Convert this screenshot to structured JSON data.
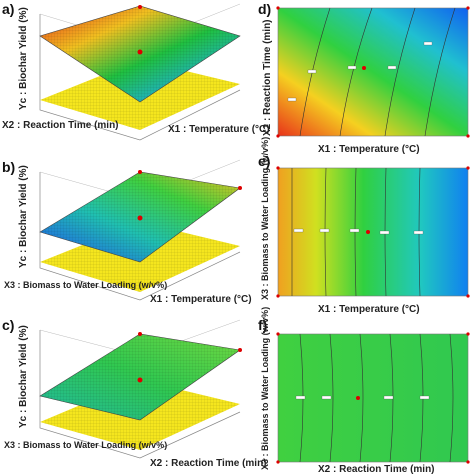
{
  "panel_labels": [
    "a)",
    "b)",
    "c)",
    "d)",
    "e)",
    "f)"
  ],
  "colors": {
    "low": "#0a3cff",
    "mid": "#18c24a",
    "high": "#e8321a",
    "floor": "#f5e61e",
    "design_point": "#dd0000"
  },
  "chart_data": [
    {
      "type": "surface",
      "panel": "a)",
      "zlabel": "Yc : Biochar Yield (%)",
      "xlabel": "X1 : Temperature (°C)",
      "ylabel": "X2 : Reaction Time (min)",
      "note": "3D response surface with projected contour floor"
    },
    {
      "type": "contour",
      "panel": "d)",
      "xlabel": "X1 : Temperature (°C)",
      "ylabel": "X2 : Reaction Time (min)",
      "fill": "gradient red (low X1, low X2) to blue (high X1, high X2)"
    },
    {
      "type": "surface",
      "panel": "b)",
      "zlabel": "Yc : Biochar Yield (%)",
      "xlabel": "X1 : Temperature (°C)",
      "ylabel": "X3 : Biomass to Water Loading (w/v%)",
      "note": "3D response surface with projected contour floor"
    },
    {
      "type": "contour",
      "panel": "e)",
      "xlabel": "X1 : Temperature (°C)",
      "ylabel": "X3 : Biomass to Water Loading (w/v%)",
      "fill": "gradient orange (low X1) to blue (high X1)"
    },
    {
      "type": "surface",
      "panel": "c)",
      "zlabel": "Yc : Biochar Yield (%)",
      "xlabel": "X2 : Reaction Time (min)",
      "ylabel": "X3 : Biomass to Water Loading (w/v%)",
      "note": "3D response surface with projected contour floor"
    },
    {
      "type": "contour",
      "panel": "f)",
      "xlabel": "X2 : Reaction Time (min)",
      "ylabel": "X3 : Biomass to Water Loading (w/v%)",
      "fill": "nearly uniform green"
    }
  ]
}
